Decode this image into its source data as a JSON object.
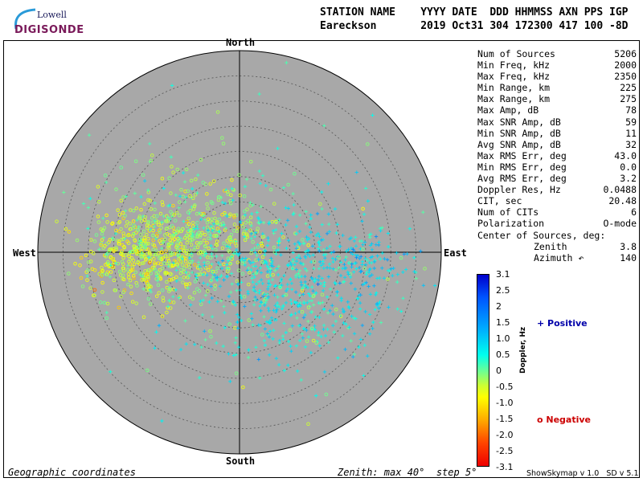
{
  "logo": {
    "top": "Lowell",
    "bottom": "DIGISONDE"
  },
  "header": {
    "row1": "STATION NAME    YYYY DATE  DDD HHMMSS AXN PPS IGP",
    "row2": "Eareckson       2019 Oct31 304 172300 417 100 -8D"
  },
  "stats": [
    {
      "label": "Num of Sources",
      "value": "5206"
    },
    {
      "label": "Min Freq, kHz",
      "value": "2000"
    },
    {
      "label": "Max Freq, kHz",
      "value": "2350"
    },
    {
      "label": "Min Range, km",
      "value": "225"
    },
    {
      "label": "Max Range, km",
      "value": "275"
    },
    {
      "label": "Max Amp, dB",
      "value": "78"
    },
    {
      "label": "Max SNR Amp, dB",
      "value": "59"
    },
    {
      "label": "Min SNR Amp, dB",
      "value": "11"
    },
    {
      "label": "Avg SNR Amp, dB",
      "value": "32"
    },
    {
      "label": "Max RMS Err, deg",
      "value": "43.0"
    },
    {
      "label": "Min RMS Err, deg",
      "value": "0.0"
    },
    {
      "label": "Avg RMS Err, deg",
      "value": "3.2"
    },
    {
      "label": "Doppler Res, Hz",
      "value": "0.0488"
    },
    {
      "label": "CIT, sec",
      "value": "20.48"
    },
    {
      "label": "Num of CITs",
      "value": "6"
    },
    {
      "label": "Polarization",
      "value": "O-mode"
    },
    {
      "label": "Center of Sources, deg:",
      "value": ""
    },
    {
      "label": "Zenith",
      "value": "3.8",
      "sub": true
    },
    {
      "label": "Azimuth ↶",
      "value": "140",
      "sub": true
    }
  ],
  "directions": {
    "north": "North",
    "south": "South",
    "west": "West",
    "east": "East"
  },
  "footer": {
    "left": "Geographic coordinates",
    "mid": "Zenith: max 40°  step 5°",
    "right": "ShowSkymap v 1.0   SD v 5.1"
  },
  "colorbar": {
    "unit": "Doppler, Hz",
    "ticks": [
      "3.1",
      "2.5",
      "2",
      "1.5",
      "1.0",
      "0.5",
      "0",
      "-0.5",
      "-1.0",
      "-1.5",
      "-2.0",
      "-2.5",
      "-3.1"
    ]
  },
  "legend": {
    "positive": "+ Positive",
    "negative": "o Negative"
  },
  "colors": {
    "disc": "#a8a8a8",
    "positive": "#0000aa",
    "negative": "#cc0000"
  },
  "chart_data": {
    "type": "scatter",
    "coordinate_system": "polar-skymap",
    "zenith_max_deg": 40,
    "zenith_step_deg": 5,
    "num_sources": 5206,
    "doppler_range_hz": [
      -3.1,
      3.1
    ],
    "center_zenith_deg": 3.8,
    "center_azimuth_deg": 140,
    "clusters": [
      {
        "x_east_deg": -19,
        "y_north_deg": -0.5,
        "spread_deg": 6,
        "count": 1300,
        "doppler_hz": -0.6
      },
      {
        "x_east_deg": -8,
        "y_north_deg": 3,
        "spread_deg": 9,
        "count": 1500,
        "doppler_hz": -0.2
      },
      {
        "x_east_deg": 10,
        "y_north_deg": -6,
        "spread_deg": 10,
        "count": 1800,
        "doppler_hz": 0.6
      },
      {
        "x_east_deg": 25,
        "y_north_deg": -2,
        "spread_deg": 5,
        "count": 300,
        "doppler_hz": 0.9
      },
      {
        "x_east_deg": 0,
        "y_north_deg": 0,
        "spread_deg": 22,
        "count": 300,
        "doppler_hz": 0.0
      }
    ]
  }
}
